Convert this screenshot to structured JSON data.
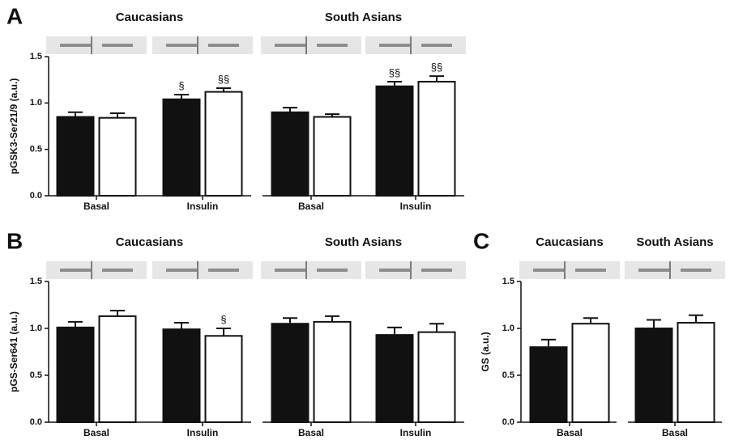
{
  "chart_data": [
    {
      "type": "bar",
      "panel": "A",
      "ylabel": "pGSK3-Ser21/9  (a.u.)",
      "groups": [
        "Caucasians",
        "South  Asians"
      ],
      "categories": [
        "Basal",
        "Insulin",
        "Basal",
        "Insulin"
      ],
      "series": [
        {
          "color": "#111111",
          "values": [
            0.85,
            1.04,
            0.9,
            1.18
          ],
          "errors": [
            0.05,
            0.05,
            0.05,
            0.05
          ],
          "signs": [
            null,
            "§",
            null,
            "§§"
          ]
        },
        {
          "color": "#ffffff",
          "values": [
            0.84,
            1.12,
            0.85,
            1.23
          ],
          "errors": [
            0.05,
            0.04,
            0.03,
            0.06
          ],
          "signs": [
            null,
            "§§",
            null,
            "§§"
          ]
        }
      ],
      "ylim": [
        0,
        1.5
      ],
      "yticks": [
        {
          "value": 0,
          "label": "0.0"
        },
        0.5,
        {
          "value": 1,
          "label": "1.0"
        },
        1.5
      ]
    },
    {
      "type": "bar",
      "panel": "B",
      "ylabel": "pGS-Ser641 (a.u.)",
      "groups": [
        "Caucasians",
        "South  Asians"
      ],
      "categories": [
        "Basal",
        "Insulin",
        "Basal",
        "Insulin"
      ],
      "series": [
        {
          "color": "#111111",
          "values": [
            1.01,
            0.99,
            1.05,
            0.93
          ],
          "errors": [
            0.06,
            0.07,
            0.06,
            0.08
          ]
        },
        {
          "color": "#ffffff",
          "values": [
            1.13,
            0.92,
            1.07,
            0.96
          ],
          "errors": [
            0.06,
            0.08,
            0.06,
            0.09
          ],
          "signs": [
            null,
            "§",
            null,
            null
          ]
        }
      ],
      "ylim": [
        0,
        1.5
      ],
      "yticks": [
        {
          "value": 0,
          "label": "0.0"
        },
        0.5,
        {
          "value": 1,
          "label": "1.0"
        },
        1.5
      ]
    },
    {
      "type": "bar",
      "panel": "C",
      "ylabel": "GS (a.u.)",
      "groups": [
        "Caucasians",
        "South Asians"
      ],
      "categories": [
        "Basal",
        "Basal"
      ],
      "series": [
        {
          "color": "#111111",
          "values": [
            0.8,
            1.0
          ],
          "errors": [
            0.08,
            0.09
          ]
        },
        {
          "color": "#ffffff",
          "values": [
            1.05,
            1.06
          ],
          "errors": [
            0.06,
            0.08
          ]
        }
      ],
      "ylim": [
        0,
        1.5
      ],
      "yticks": [
        {
          "value": 0,
          "label": "0.0"
        },
        0.5,
        {
          "value": 1,
          "label": "1.0"
        },
        1.5
      ]
    }
  ]
}
